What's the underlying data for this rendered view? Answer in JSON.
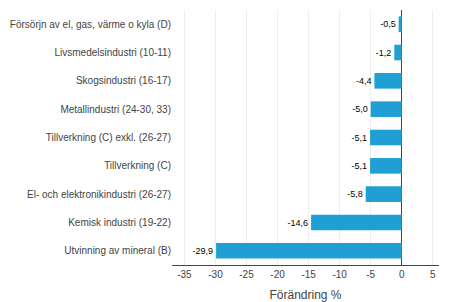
{
  "chart_data": {
    "type": "bar",
    "orientation": "horizontal",
    "categories": [
      "Utvinning av mineral (B)",
      "Kemisk industri (19-22)",
      "El- och elektronikindustri (26-27)",
      "Tillverkning (C)",
      "Tillverkning (C) exkl. (26-27)",
      "Metallindustri (24-30, 33)",
      "Skogsindustri (16-17)",
      "Livsmedelsindustri (10-11)",
      "Försörjn av el, gas, värme o kyla (D)"
    ],
    "values": [
      -29.9,
      -14.6,
      -5.8,
      -5.1,
      -5.1,
      -5.0,
      -4.4,
      -1.2,
      -0.5
    ],
    "value_labels": [
      "-29,9",
      "-14,6",
      "-5,8",
      "-5,1",
      "-5,1",
      "-5,0",
      "-4,4",
      "-1,2",
      "-0,5"
    ],
    "data_labels": true,
    "color": "#1f9fd4",
    "xlabel": "Förändring %",
    "xlim": [
      -37,
      6
    ],
    "xticks": [
      -35,
      -30,
      -25,
      -20,
      -15,
      -10,
      -5,
      0,
      5
    ],
    "grid": true
  }
}
